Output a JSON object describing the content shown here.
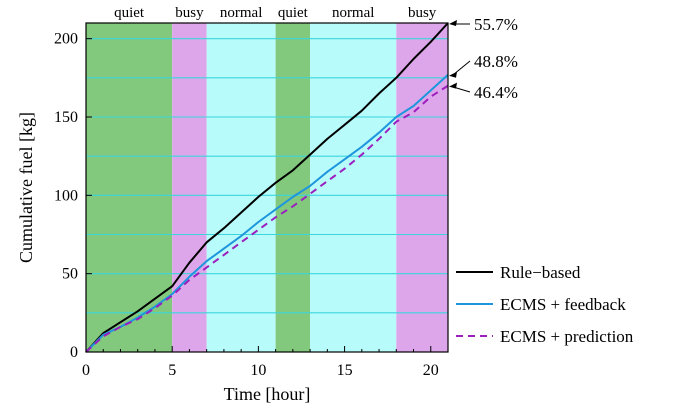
{
  "chart_data": {
    "type": "line",
    "xlabel": "Time [hour]",
    "ylabel": "Cumulative fuel [kg]",
    "xlim": [
      0,
      21
    ],
    "ylim": [
      0,
      210
    ],
    "xticks": [
      0,
      5,
      10,
      15,
      20
    ],
    "yticks": [
      0,
      50,
      100,
      150,
      200
    ],
    "grid": "horizontal",
    "legend_position": "bottom-right",
    "periods": [
      {
        "label": "quiet",
        "start": 0,
        "end": 5,
        "color": "#83c97d"
      },
      {
        "label": "busy",
        "start": 5,
        "end": 7,
        "color": "#dea6ea"
      },
      {
        "label": "normal",
        "start": 7,
        "end": 11,
        "color": "#b8fbfb"
      },
      {
        "label": "quiet",
        "start": 11,
        "end": 13,
        "color": "#83c97d"
      },
      {
        "label": "normal",
        "start": 13,
        "end": 18,
        "color": "#b8fbfb"
      },
      {
        "label": "busy",
        "start": 18,
        "end": 21,
        "color": "#dea6ea"
      }
    ],
    "series": [
      {
        "name": "Rule−based",
        "color": "#000000",
        "dash": "solid",
        "end_annotation": "55.7%",
        "x": [
          0,
          1,
          2,
          3,
          4,
          5,
          6,
          7,
          8,
          9,
          10,
          11,
          12,
          13,
          14,
          15,
          16,
          17,
          18,
          19,
          20,
          21
        ],
        "y": [
          0,
          12,
          19,
          26,
          34,
          42,
          57,
          70,
          79,
          89,
          99,
          108,
          116,
          126,
          136,
          145,
          154,
          165,
          175,
          187,
          198,
          210
        ]
      },
      {
        "name": "ECMS + feedback",
        "color": "#1e96dc",
        "dash": "solid",
        "end_annotation": "48.8%",
        "x": [
          0,
          1,
          2,
          3,
          4,
          5,
          6,
          7,
          8,
          9,
          10,
          11,
          12,
          13,
          14,
          15,
          16,
          17,
          18,
          19,
          20,
          21
        ],
        "y": [
          0,
          11,
          16,
          22,
          29,
          37,
          48,
          58,
          66,
          74,
          83,
          91,
          99,
          106,
          115,
          123,
          131,
          140,
          150,
          157,
          167,
          177
        ]
      },
      {
        "name": "ECMS + prediction",
        "color": "#9b1fbe",
        "dash": "dashed",
        "end_annotation": "46.4%",
        "x": [
          0,
          1,
          2,
          3,
          4,
          5,
          6,
          7,
          8,
          9,
          10,
          11,
          12,
          13,
          14,
          15,
          16,
          17,
          18,
          19,
          20,
          21
        ],
        "y": [
          0,
          10,
          16,
          21,
          28,
          36,
          46,
          54,
          62,
          70,
          78,
          86,
          93,
          101,
          109,
          117,
          126,
          136,
          147,
          153,
          163,
          170
        ]
      }
    ]
  }
}
